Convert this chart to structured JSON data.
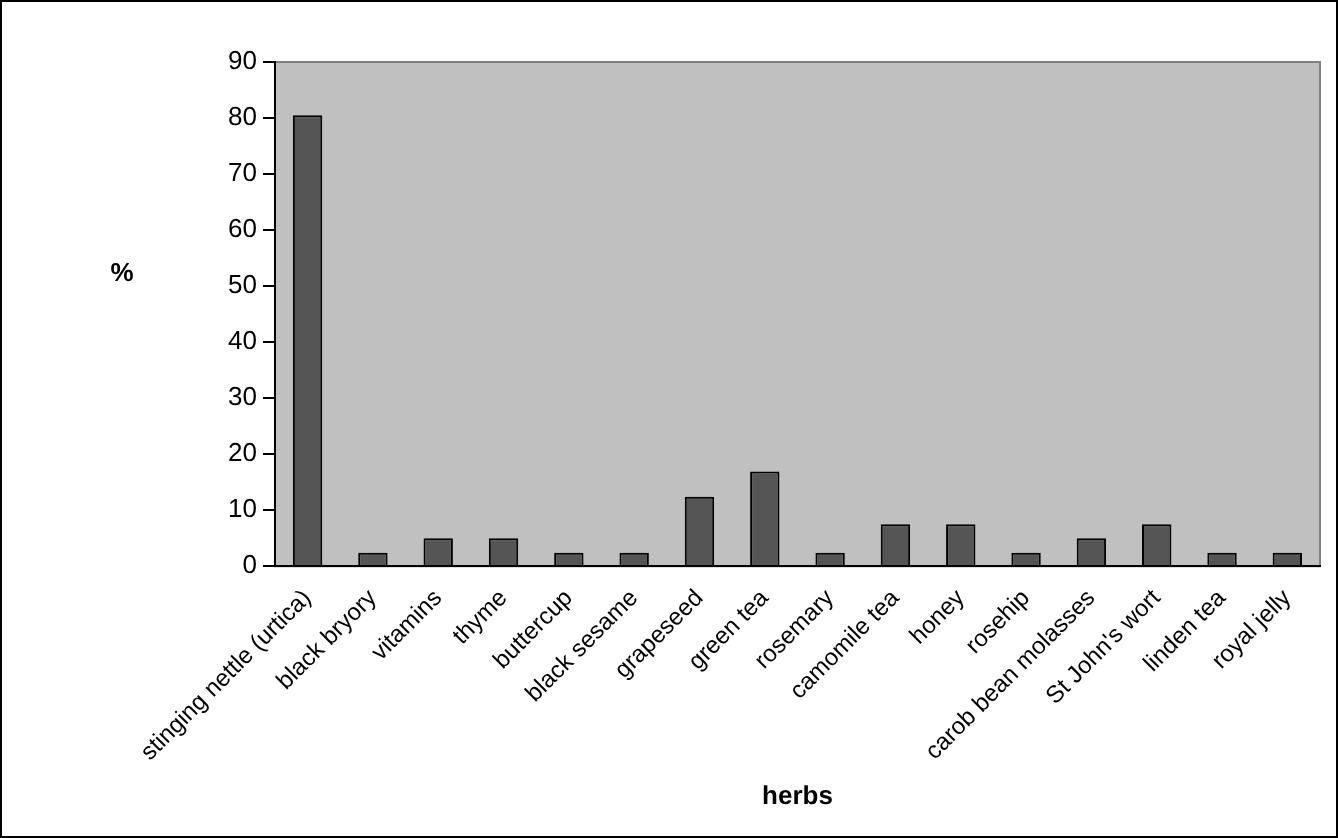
{
  "chart_data": {
    "type": "bar",
    "xlabel": "herbs",
    "ylabel": "%",
    "categories": [
      "stinging nettle (urtica)",
      "black bryory",
      "vitamins",
      "thyme",
      "buttercup",
      "black sesame",
      "grapeseed",
      "green tea",
      "rosemary",
      "camomile tea",
      "honey",
      "rosehip",
      "carob bean molasses",
      "St John's wort",
      "linden tea",
      "royal jelly"
    ],
    "values": [
      80.5,
      2.4,
      5,
      5,
      2.4,
      2.4,
      12.4,
      16.9,
      2.4,
      7.5,
      7.5,
      2.4,
      5,
      7.5,
      2.4,
      2.4
    ],
    "color": "#555555",
    "ylim": [
      0,
      90
    ],
    "yticks": [
      0,
      10,
      20,
      30,
      40,
      50,
      60,
      70,
      80,
      90
    ],
    "grid": false,
    "legend": false
  }
}
